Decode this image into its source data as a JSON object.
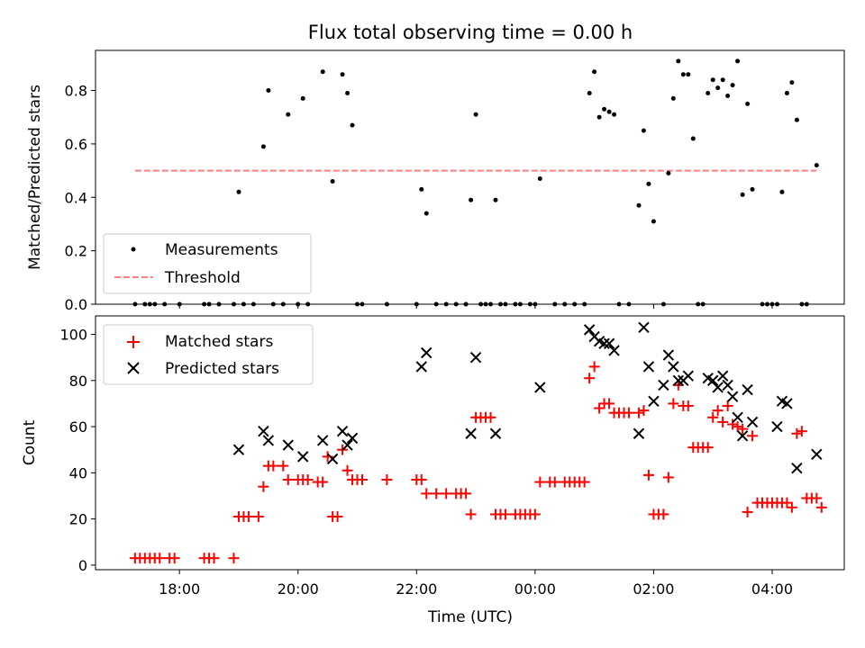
{
  "chart_data": [
    {
      "type": "scatter",
      "title": "Flux total observing time = 0.00 h",
      "ylabel": "Matched/Predicted stars",
      "ylim": [
        0,
        0.95
      ],
      "yticks": [
        "0.0",
        "0.2",
        "0.4",
        "0.6",
        "0.8"
      ],
      "grid": false,
      "legend_position": "lower-left",
      "series": [
        {
          "name": "Measurements",
          "style": "dot",
          "color": "#000000",
          "points": [
            [
              "17:15",
              0
            ],
            [
              "17:25",
              0
            ],
            [
              "17:30",
              0
            ],
            [
              "17:35",
              0
            ],
            [
              "17:45",
              0
            ],
            [
              "18:00",
              0
            ],
            [
              "18:25",
              0
            ],
            [
              "18:30",
              0
            ],
            [
              "18:40",
              0
            ],
            [
              "18:55",
              0
            ],
            [
              "19:00",
              0.42
            ],
            [
              "19:05",
              0
            ],
            [
              "19:15",
              0
            ],
            [
              "19:25",
              0.59
            ],
            [
              "19:30",
              0.8
            ],
            [
              "19:35",
              0
            ],
            [
              "19:45",
              0
            ],
            [
              "19:50",
              0.71
            ],
            [
              "20:00",
              0
            ],
            [
              "20:05",
              0.77
            ],
            [
              "20:10",
              0
            ],
            [
              "20:25",
              0.87
            ],
            [
              "20:35",
              0.46
            ],
            [
              "20:45",
              0.86
            ],
            [
              "20:50",
              0.79
            ],
            [
              "20:55",
              0.67
            ],
            [
              "21:00",
              0
            ],
            [
              "21:05",
              0
            ],
            [
              "21:30",
              0
            ],
            [
              "22:00",
              0
            ],
            [
              "22:05",
              0.43
            ],
            [
              "22:10",
              0.34
            ],
            [
              "22:20",
              0
            ],
            [
              "22:30",
              0
            ],
            [
              "22:40",
              0
            ],
            [
              "22:50",
              0
            ],
            [
              "22:55",
              0.39
            ],
            [
              "23:00",
              0.71
            ],
            [
              "23:05",
              0
            ],
            [
              "23:10",
              0
            ],
            [
              "23:15",
              0
            ],
            [
              "23:20",
              0.39
            ],
            [
              "23:25",
              0
            ],
            [
              "23:30",
              0
            ],
            [
              "23:40",
              0
            ],
            [
              "23:45",
              0
            ],
            [
              "23:55",
              0
            ],
            [
              "00:00",
              0
            ],
            [
              "00:05",
              0.47
            ],
            [
              "00:20",
              0
            ],
            [
              "00:30",
              0
            ],
            [
              "00:40",
              0
            ],
            [
              "00:50",
              0
            ],
            [
              "00:55",
              0.79
            ],
            [
              "01:00",
              0.87
            ],
            [
              "01:05",
              0.7
            ],
            [
              "01:10",
              0.73
            ],
            [
              "01:15",
              0.72
            ],
            [
              "01:20",
              0.71
            ],
            [
              "01:25",
              0
            ],
            [
              "01:35",
              0
            ],
            [
              "01:45",
              0.37
            ],
            [
              "01:50",
              0.65
            ],
            [
              "01:55",
              0.45
            ],
            [
              "02:00",
              0.31
            ],
            [
              "02:10",
              0
            ],
            [
              "02:15",
              0.49
            ],
            [
              "02:20",
              0.77
            ],
            [
              "02:25",
              0.91
            ],
            [
              "02:30",
              0.86
            ],
            [
              "02:35",
              0.86
            ],
            [
              "02:40",
              0.62
            ],
            [
              "02:45",
              0
            ],
            [
              "02:50",
              0
            ],
            [
              "02:55",
              0.79
            ],
            [
              "03:00",
              0.84
            ],
            [
              "03:05",
              0.81
            ],
            [
              "03:10",
              0.84
            ],
            [
              "03:15",
              0.78
            ],
            [
              "03:20",
              0.82
            ],
            [
              "03:25",
              0.91
            ],
            [
              "03:30",
              0.41
            ],
            [
              "03:35",
              0.75
            ],
            [
              "03:40",
              0.43
            ],
            [
              "03:50",
              0
            ],
            [
              "03:55",
              0
            ],
            [
              "04:00",
              0
            ],
            [
              "04:05",
              0
            ],
            [
              "04:10",
              0.42
            ],
            [
              "04:15",
              0.79
            ],
            [
              "04:20",
              0.83
            ],
            [
              "04:25",
              0.69
            ],
            [
              "04:30",
              0
            ],
            [
              "04:35",
              0
            ],
            [
              "04:45",
              0.52
            ]
          ]
        },
        {
          "name": "Threshold",
          "style": "dashed-line",
          "color": "#ff7f7f",
          "points": [
            [
              "17:15",
              0.5
            ],
            [
              "04:45",
              0.5
            ]
          ]
        }
      ]
    },
    {
      "type": "scatter",
      "xlabel": "Time (UTC)",
      "ylabel": "Count",
      "ylim": [
        -2,
        108
      ],
      "yticks": [
        "0",
        "20",
        "40",
        "60",
        "80",
        "100"
      ],
      "xticks": [
        "18:00",
        "20:00",
        "22:00",
        "00:00",
        "02:00",
        "04:00"
      ],
      "grid": false,
      "legend_position": "upper-left",
      "series": [
        {
          "name": "Matched stars",
          "style": "plus",
          "color": "#ff0000",
          "points": [
            [
              "17:15",
              3
            ],
            [
              "17:20",
              3
            ],
            [
              "17:25",
              3
            ],
            [
              "17:30",
              3
            ],
            [
              "17:35",
              3
            ],
            [
              "17:40",
              3
            ],
            [
              "17:50",
              3
            ],
            [
              "17:55",
              3
            ],
            [
              "18:25",
              3
            ],
            [
              "18:30",
              3
            ],
            [
              "18:35",
              3
            ],
            [
              "18:55",
              3
            ],
            [
              "19:00",
              21
            ],
            [
              "19:05",
              21
            ],
            [
              "19:10",
              21
            ],
            [
              "19:20",
              21
            ],
            [
              "19:25",
              34
            ],
            [
              "19:30",
              43
            ],
            [
              "19:35",
              43
            ],
            [
              "19:45",
              43
            ],
            [
              "19:50",
              37
            ],
            [
              "20:00",
              37
            ],
            [
              "20:05",
              37
            ],
            [
              "20:10",
              37
            ],
            [
              "20:20",
              36
            ],
            [
              "20:25",
              36
            ],
            [
              "20:30",
              47
            ],
            [
              "20:35",
              21
            ],
            [
              "20:40",
              21
            ],
            [
              "20:45",
              50
            ],
            [
              "20:50",
              41
            ],
            [
              "20:55",
              37
            ],
            [
              "21:00",
              37
            ],
            [
              "21:05",
              37
            ],
            [
              "21:30",
              37
            ],
            [
              "22:00",
              37
            ],
            [
              "22:05",
              37
            ],
            [
              "22:10",
              31
            ],
            [
              "22:20",
              31
            ],
            [
              "22:30",
              31
            ],
            [
              "22:40",
              31
            ],
            [
              "22:45",
              31
            ],
            [
              "22:50",
              31
            ],
            [
              "22:55",
              22
            ],
            [
              "23:00",
              64
            ],
            [
              "23:05",
              64
            ],
            [
              "23:10",
              64
            ],
            [
              "23:15",
              64
            ],
            [
              "23:20",
              22
            ],
            [
              "23:25",
              22
            ],
            [
              "23:30",
              22
            ],
            [
              "23:40",
              22
            ],
            [
              "23:45",
              22
            ],
            [
              "23:50",
              22
            ],
            [
              "23:55",
              22
            ],
            [
              "00:00",
              22
            ],
            [
              "00:05",
              36
            ],
            [
              "00:15",
              36
            ],
            [
              "00:20",
              36
            ],
            [
              "00:30",
              36
            ],
            [
              "00:35",
              36
            ],
            [
              "00:40",
              36
            ],
            [
              "00:45",
              36
            ],
            [
              "00:50",
              36
            ],
            [
              "00:55",
              81
            ],
            [
              "01:00",
              86
            ],
            [
              "01:05",
              68
            ],
            [
              "01:10",
              70
            ],
            [
              "01:15",
              70
            ],
            [
              "01:20",
              66
            ],
            [
              "01:25",
              66
            ],
            [
              "01:30",
              66
            ],
            [
              "01:35",
              66
            ],
            [
              "01:45",
              66
            ],
            [
              "01:50",
              67
            ],
            [
              "01:55",
              39
            ],
            [
              "02:00",
              22
            ],
            [
              "02:05",
              22
            ],
            [
              "02:10",
              22
            ],
            [
              "02:15",
              38
            ],
            [
              "02:20",
              70
            ],
            [
              "02:25",
              78
            ],
            [
              "02:30",
              69
            ],
            [
              "02:35",
              69
            ],
            [
              "02:40",
              51
            ],
            [
              "02:45",
              51
            ],
            [
              "02:50",
              51
            ],
            [
              "02:55",
              51
            ],
            [
              "03:00",
              64
            ],
            [
              "03:05",
              67
            ],
            [
              "03:10",
              62
            ],
            [
              "03:15",
              69
            ],
            [
              "03:20",
              61
            ],
            [
              "03:25",
              60
            ],
            [
              "03:30",
              59
            ],
            [
              "03:35",
              23
            ],
            [
              "03:40",
              56
            ],
            [
              "03:45",
              27
            ],
            [
              "03:50",
              27
            ],
            [
              "03:55",
              27
            ],
            [
              "04:00",
              27
            ],
            [
              "04:05",
              27
            ],
            [
              "04:10",
              27
            ],
            [
              "04:15",
              27
            ],
            [
              "04:20",
              25
            ],
            [
              "04:25",
              57
            ],
            [
              "04:30",
              58
            ],
            [
              "04:35",
              29
            ],
            [
              "04:40",
              29
            ],
            [
              "04:45",
              29
            ],
            [
              "04:50",
              25
            ]
          ]
        },
        {
          "name": "Predicted stars",
          "style": "cross",
          "color": "#000000",
          "points": [
            [
              "19:00",
              50
            ],
            [
              "19:25",
              58
            ],
            [
              "19:30",
              54
            ],
            [
              "19:50",
              52
            ],
            [
              "20:05",
              47
            ],
            [
              "20:25",
              54
            ],
            [
              "20:35",
              46
            ],
            [
              "20:45",
              58
            ],
            [
              "20:50",
              52
            ],
            [
              "20:55",
              55
            ],
            [
              "22:05",
              86
            ],
            [
              "22:10",
              92
            ],
            [
              "22:55",
              57
            ],
            [
              "23:00",
              90
            ],
            [
              "23:20",
              57
            ],
            [
              "00:05",
              77
            ],
            [
              "00:55",
              102
            ],
            [
              "01:00",
              99
            ],
            [
              "01:05",
              97
            ],
            [
              "01:10",
              96
            ],
            [
              "01:15",
              96
            ],
            [
              "01:20",
              93
            ],
            [
              "01:45",
              57
            ],
            [
              "01:50",
              103
            ],
            [
              "01:55",
              86
            ],
            [
              "02:00",
              71
            ],
            [
              "02:10",
              78
            ],
            [
              "02:15",
              91
            ],
            [
              "02:20",
              86
            ],
            [
              "02:25",
              80
            ],
            [
              "02:30",
              80
            ],
            [
              "02:35",
              82
            ],
            [
              "02:55",
              81
            ],
            [
              "03:00",
              80
            ],
            [
              "03:05",
              77
            ],
            [
              "03:10",
              82
            ],
            [
              "03:15",
              78
            ],
            [
              "03:20",
              73
            ],
            [
              "03:25",
              64
            ],
            [
              "03:30",
              56
            ],
            [
              "03:35",
              76
            ],
            [
              "03:40",
              62
            ],
            [
              "04:05",
              60
            ],
            [
              "04:10",
              71
            ],
            [
              "04:15",
              70
            ],
            [
              "04:25",
              42
            ],
            [
              "04:45",
              48
            ]
          ]
        }
      ]
    }
  ]
}
